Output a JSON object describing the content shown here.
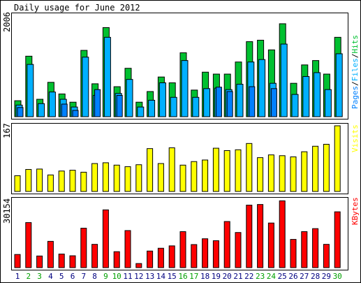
{
  "title": "Daily usage for June 2012",
  "colors": {
    "background": "#ffffff",
    "frame": "#000000",
    "panel_border": "#000000",
    "hits": "#00c030",
    "files": "#00b0ff",
    "pages": "#0080ff",
    "visits": "#ffff00",
    "kbytes": "#ff0000",
    "weekday_label": "#000080",
    "weekend_label": "#00a000",
    "max_label": "#000000"
  },
  "chart_data": [
    {
      "type": "bar",
      "panel": "hits-files-pages",
      "x": [
        1,
        2,
        3,
        4,
        5,
        6,
        7,
        8,
        9,
        10,
        11,
        12,
        13,
        14,
        15,
        16,
        17,
        18,
        19,
        20,
        21,
        22,
        23,
        24,
        25,
        26,
        27,
        28,
        29,
        30
      ],
      "max_label": "2006",
      "ymax": 2006,
      "legend": {
        "pages": "Pages",
        "files": "Files",
        "hits": "Hits",
        "separator": "/"
      },
      "series": [
        {
          "name": "Hits",
          "values": [
            330,
            1250,
            360,
            710,
            470,
            300,
            1370,
            680,
            1840,
            620,
            1000,
            300,
            520,
            820,
            700,
            1320,
            550,
            920,
            880,
            880,
            1130,
            1550,
            1580,
            1380,
            1920,
            690,
            1070,
            1160,
            880,
            1640
          ]
        },
        {
          "name": "Files",
          "values": [
            240,
            1080,
            270,
            510,
            360,
            200,
            1230,
            440,
            1640,
            480,
            770,
            200,
            340,
            700,
            400,
            1160,
            400,
            580,
            590,
            560,
            670,
            1130,
            1180,
            690,
            1500,
            460,
            830,
            910,
            560,
            1300
          ]
        },
        {
          "name": "Pages",
          "values": [
            190,
            null,
            null,
            null,
            260,
            130,
            null,
            560,
            null,
            440,
            null,
            null,
            null,
            null,
            null,
            null,
            null,
            null,
            610,
            520,
            null,
            620,
            null,
            580,
            null,
            null,
            null,
            null,
            null,
            null
          ]
        }
      ]
    },
    {
      "type": "bar",
      "panel": "visits",
      "x": [
        1,
        2,
        3,
        4,
        5,
        6,
        7,
        8,
        9,
        10,
        11,
        12,
        13,
        14,
        15,
        16,
        17,
        18,
        19,
        20,
        21,
        22,
        23,
        24,
        25,
        26,
        27,
        28,
        29,
        30
      ],
      "max_label": "167",
      "ymax": 167,
      "legend": "Visits",
      "series": [
        {
          "name": "Visits",
          "values": [
            40,
            56,
            57,
            42,
            52,
            54,
            49,
            71,
            73,
            67,
            63,
            68,
            109,
            71,
            111,
            67,
            76,
            80,
            110,
            104,
            106,
            122,
            86,
            93,
            91,
            88,
            101,
            115,
            120,
            167
          ]
        }
      ]
    },
    {
      "type": "bar",
      "panel": "kbytes",
      "x": [
        1,
        2,
        3,
        4,
        5,
        6,
        7,
        8,
        9,
        10,
        11,
        12,
        13,
        14,
        15,
        16,
        17,
        18,
        19,
        20,
        21,
        22,
        23,
        24,
        25,
        26,
        27,
        28,
        29,
        30
      ],
      "max_label": "30154",
      "ymax": 30154,
      "legend": "KBytes",
      "series": [
        {
          "name": "KBytes",
          "values": [
            6100,
            20900,
            5400,
            12200,
            6300,
            5500,
            18300,
            10800,
            26800,
            7400,
            17200,
            1900,
            7700,
            9000,
            10100,
            16700,
            10700,
            13400,
            12500,
            21400,
            16300,
            29000,
            29300,
            20700,
            31000,
            13100,
            16700,
            18100,
            10800,
            25900
          ]
        }
      ]
    }
  ],
  "weekends": [
    2,
    3,
    9,
    10,
    16,
    17,
    23,
    24,
    30
  ]
}
